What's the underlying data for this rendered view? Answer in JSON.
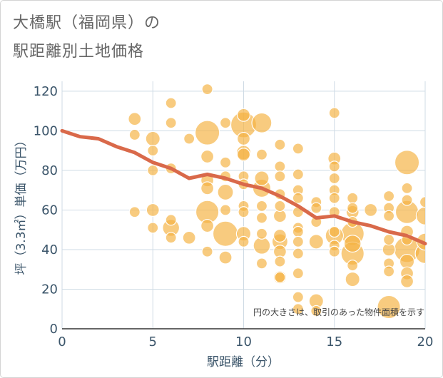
{
  "title": {
    "line1": "大橋駅（福岡県）の",
    "line2": "駅距離別土地価格"
  },
  "note": "円の大きさは、取引のあった物件面積を示す",
  "colors": {
    "bubble_fill": "#f4b342",
    "bubble_stroke": "#ffffff",
    "trend_line": "#d9694a",
    "grid": "#cfdbe5",
    "axis_text": "#3b556a"
  },
  "chart_data": {
    "type": "scatter",
    "xlabel": "駅距離（分）",
    "ylabel": "坪（3.3㎡）単価（万円）",
    "xlim": [
      0,
      20
    ],
    "ylim": [
      0,
      125
    ],
    "xticks": [
      0,
      5,
      10,
      15,
      20
    ],
    "yticks": [
      0,
      20,
      40,
      60,
      80,
      100,
      120
    ],
    "grid": true,
    "trend_line": {
      "x": [
        0,
        1,
        2,
        3,
        4,
        5,
        6,
        7,
        8,
        9,
        10,
        11,
        12,
        13,
        14,
        15,
        16,
        17,
        18,
        19,
        20
      ],
      "y": [
        100,
        97,
        96,
        92,
        89,
        84,
        81,
        76,
        78,
        76,
        73,
        71,
        67,
        62,
        56,
        57,
        54,
        52,
        49,
        47,
        43
      ]
    },
    "points": [
      {
        "x": 4,
        "y": 106,
        "s": 2
      },
      {
        "x": 4,
        "y": 98,
        "s": 1
      },
      {
        "x": 4,
        "y": 59,
        "s": 1
      },
      {
        "x": 5,
        "y": 96,
        "s": 3
      },
      {
        "x": 5,
        "y": 90,
        "s": 1
      },
      {
        "x": 5,
        "y": 80,
        "s": 1
      },
      {
        "x": 5,
        "y": 60,
        "s": 2
      },
      {
        "x": 5,
        "y": 51,
        "s": 1
      },
      {
        "x": 6,
        "y": 114,
        "s": 1
      },
      {
        "x": 6,
        "y": 104,
        "s": 1
      },
      {
        "x": 6,
        "y": 81,
        "s": 1
      },
      {
        "x": 6,
        "y": 55,
        "s": 1
      },
      {
        "x": 6,
        "y": 51,
        "s": 5
      },
      {
        "x": 6,
        "y": 46,
        "s": 1
      },
      {
        "x": 7,
        "y": 96,
        "s": 1
      },
      {
        "x": 7,
        "y": 46,
        "s": 2
      },
      {
        "x": 8,
        "y": 121,
        "s": 1
      },
      {
        "x": 8,
        "y": 99,
        "s": 14
      },
      {
        "x": 8,
        "y": 87,
        "s": 2
      },
      {
        "x": 8,
        "y": 75,
        "s": 2
      },
      {
        "x": 8,
        "y": 71,
        "s": 2
      },
      {
        "x": 8,
        "y": 59,
        "s": 12
      },
      {
        "x": 8,
        "y": 52,
        "s": 2
      },
      {
        "x": 8,
        "y": 39,
        "s": 1
      },
      {
        "x": 9,
        "y": 104,
        "s": 1
      },
      {
        "x": 9,
        "y": 84,
        "s": 1
      },
      {
        "x": 9,
        "y": 77,
        "s": 1
      },
      {
        "x": 9,
        "y": 69,
        "s": 4
      },
      {
        "x": 9,
        "y": 60,
        "s": 1
      },
      {
        "x": 9,
        "y": 48,
        "s": 15
      },
      {
        "x": 9,
        "y": 36,
        "s": 2
      },
      {
        "x": 10,
        "y": 108,
        "s": 2
      },
      {
        "x": 10,
        "y": 103,
        "s": 16
      },
      {
        "x": 10,
        "y": 96,
        "s": 2
      },
      {
        "x": 10,
        "y": 89,
        "s": 3
      },
      {
        "x": 10,
        "y": 88,
        "s": 2
      },
      {
        "x": 10,
        "y": 77,
        "s": 1
      },
      {
        "x": 10,
        "y": 73,
        "s": 1
      },
      {
        "x": 10,
        "y": 62,
        "s": 1
      },
      {
        "x": 10,
        "y": 59,
        "s": 1
      },
      {
        "x": 10,
        "y": 48,
        "s": 3
      },
      {
        "x": 10,
        "y": 44,
        "s": 1
      },
      {
        "x": 11,
        "y": 104,
        "s": 8
      },
      {
        "x": 11,
        "y": 88,
        "s": 1
      },
      {
        "x": 11,
        "y": 76,
        "s": 3
      },
      {
        "x": 11,
        "y": 71,
        "s": 6
      },
      {
        "x": 11,
        "y": 62,
        "s": 1
      },
      {
        "x": 11,
        "y": 56,
        "s": 1
      },
      {
        "x": 11,
        "y": 48,
        "s": 1
      },
      {
        "x": 11,
        "y": 42,
        "s": 5
      },
      {
        "x": 11,
        "y": 33,
        "s": 1
      },
      {
        "x": 12,
        "y": 93,
        "s": 1
      },
      {
        "x": 12,
        "y": 82,
        "s": 1
      },
      {
        "x": 12,
        "y": 77,
        "s": 1
      },
      {
        "x": 12,
        "y": 68,
        "s": 1
      },
      {
        "x": 12,
        "y": 62,
        "s": 1
      },
      {
        "x": 12,
        "y": 57,
        "s": 2
      },
      {
        "x": 12,
        "y": 47,
        "s": 2
      },
      {
        "x": 12,
        "y": 44,
        "s": 4
      },
      {
        "x": 12,
        "y": 39,
        "s": 2
      },
      {
        "x": 12,
        "y": 34,
        "s": 1
      },
      {
        "x": 12,
        "y": 26,
        "s": 2
      },
      {
        "x": 12,
        "y": 26,
        "s": 1
      },
      {
        "x": 13,
        "y": 91,
        "s": 1
      },
      {
        "x": 13,
        "y": 78,
        "s": 1
      },
      {
        "x": 13,
        "y": 70,
        "s": 1
      },
      {
        "x": 13,
        "y": 66,
        "s": 1
      },
      {
        "x": 13,
        "y": 59,
        "s": 1
      },
      {
        "x": 13,
        "y": 51,
        "s": 1
      },
      {
        "x": 13,
        "y": 49,
        "s": 1
      },
      {
        "x": 13,
        "y": 44,
        "s": 1
      },
      {
        "x": 13,
        "y": 38,
        "s": 1
      },
      {
        "x": 13,
        "y": 28,
        "s": 1
      },
      {
        "x": 13,
        "y": 16,
        "s": 1
      },
      {
        "x": 13,
        "y": 10,
        "s": 1
      },
      {
        "x": 14,
        "y": 64,
        "s": 1
      },
      {
        "x": 14,
        "y": 61,
        "s": 1
      },
      {
        "x": 14,
        "y": 54,
        "s": 1
      },
      {
        "x": 14,
        "y": 44,
        "s": 3
      },
      {
        "x": 14,
        "y": 14,
        "s": 3
      },
      {
        "x": 14,
        "y": 9,
        "s": 1
      },
      {
        "x": 15,
        "y": 109,
        "s": 1
      },
      {
        "x": 15,
        "y": 86,
        "s": 2
      },
      {
        "x": 15,
        "y": 82,
        "s": 1
      },
      {
        "x": 15,
        "y": 76,
        "s": 1
      },
      {
        "x": 15,
        "y": 70,
        "s": 1
      },
      {
        "x": 15,
        "y": 66,
        "s": 1
      },
      {
        "x": 15,
        "y": 59,
        "s": 1
      },
      {
        "x": 15,
        "y": 49,
        "s": 1
      },
      {
        "x": 15,
        "y": 47,
        "s": 6
      },
      {
        "x": 15,
        "y": 42,
        "s": 1
      },
      {
        "x": 15,
        "y": 39,
        "s": 1
      },
      {
        "x": 16,
        "y": 66,
        "s": 1
      },
      {
        "x": 16,
        "y": 61,
        "s": 1
      },
      {
        "x": 16,
        "y": 59,
        "s": 2
      },
      {
        "x": 16,
        "y": 54,
        "s": 1
      },
      {
        "x": 16,
        "y": 48,
        "s": 12
      },
      {
        "x": 16,
        "y": 43,
        "s": 5
      },
      {
        "x": 16,
        "y": 38,
        "s": 12
      },
      {
        "x": 16,
        "y": 32,
        "s": 1
      },
      {
        "x": 16,
        "y": 25,
        "s": 3
      },
      {
        "x": 17,
        "y": 60,
        "s": 2
      },
      {
        "x": 18,
        "y": 67,
        "s": 1
      },
      {
        "x": 18,
        "y": 61,
        "s": 1
      },
      {
        "x": 18,
        "y": 57,
        "s": 1
      },
      {
        "x": 18,
        "y": 45,
        "s": 1
      },
      {
        "x": 18,
        "y": 40,
        "s": 2
      },
      {
        "x": 18,
        "y": 33,
        "s": 1
      },
      {
        "x": 18,
        "y": 29,
        "s": 1
      },
      {
        "x": 18,
        "y": 11,
        "s": 12
      },
      {
        "x": 19,
        "y": 84,
        "s": 14
      },
      {
        "x": 19,
        "y": 71,
        "s": 1
      },
      {
        "x": 19,
        "y": 65,
        "s": 1
      },
      {
        "x": 19,
        "y": 59,
        "s": 12
      },
      {
        "x": 19,
        "y": 49,
        "s": 2
      },
      {
        "x": 19,
        "y": 45,
        "s": 1
      },
      {
        "x": 19,
        "y": 40,
        "s": 16
      },
      {
        "x": 19,
        "y": 34,
        "s": 3
      },
      {
        "x": 19,
        "y": 28,
        "s": 2
      },
      {
        "x": 19,
        "y": 24,
        "s": 2
      },
      {
        "x": 20,
        "y": 64,
        "s": 1
      },
      {
        "x": 20,
        "y": 57,
        "s": 6
      },
      {
        "x": 20,
        "y": 44,
        "s": 5
      },
      {
        "x": 20,
        "y": 38,
        "s": 8
      }
    ]
  }
}
